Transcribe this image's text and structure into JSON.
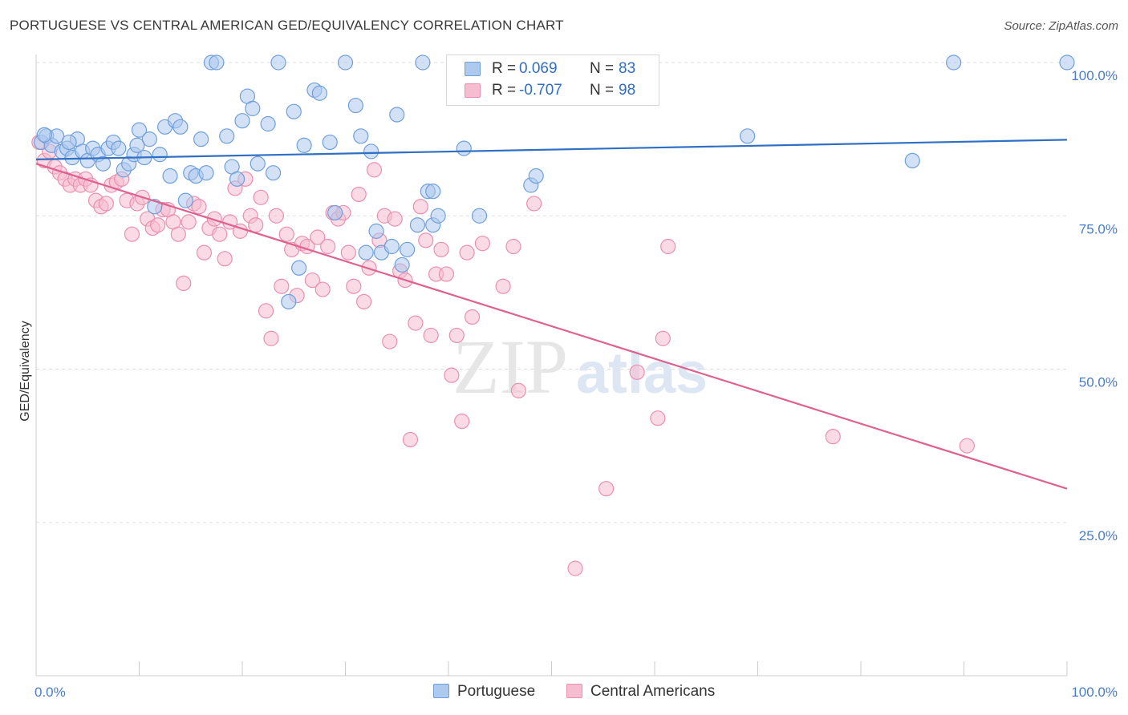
{
  "title": "PORTUGUESE VS CENTRAL AMERICAN GED/EQUIVALENCY CORRELATION CHART",
  "source": "Source: ZipAtlas.com",
  "watermark": {
    "zip": "ZIP",
    "atlas": "atlas"
  },
  "legend": {
    "series1": {
      "r_label": "R =",
      "r_value": "0.069",
      "n_label": "N =",
      "n_value": "83"
    },
    "series2": {
      "r_label": "R =",
      "r_value": "-0.707",
      "n_label": "N =",
      "n_value": "98"
    }
  },
  "bottom_legend": {
    "series1": "Portuguese",
    "series2": "Central Americans"
  },
  "colors": {
    "blue_fill": "#adc9ee",
    "blue_stroke": "#6f9fdc",
    "blue_line": "#2f6fc4",
    "pink_fill": "#f6bcd0",
    "pink_stroke": "#eb8fb0",
    "pink_line": "#e0608e",
    "grid": "#dddddd",
    "tick_label": "#4a7cc9"
  },
  "chart_data": {
    "type": "scatter",
    "title": "PORTUGUESE VS CENTRAL AMERICAN GED/EQUIVALENCY CORRELATION CHART",
    "xlabel": "",
    "ylabel": "GED/Equivalency",
    "xlim": [
      0,
      100
    ],
    "ylim": [
      0,
      100
    ],
    "x_tick_labels": [
      "0.0%",
      "100.0%"
    ],
    "y_ticks": [
      25,
      50,
      75,
      100
    ],
    "y_tick_labels": [
      "25.0%",
      "50.0%",
      "75.0%",
      "100.0%"
    ],
    "grid": true,
    "series": [
      {
        "name": "Portuguese",
        "trend": {
          "x": [
            0,
            100
          ],
          "y": [
            84.2,
            87.4
          ]
        },
        "points": [
          [
            0.5,
            87
          ],
          [
            1,
            88
          ],
          [
            1.5,
            86.5
          ],
          [
            2,
            88
          ],
          [
            2.5,
            85.5
          ],
          [
            3,
            86
          ],
          [
            3.5,
            84.5
          ],
          [
            4,
            87.5
          ],
          [
            4.5,
            85.5
          ],
          [
            5,
            84
          ],
          [
            5.5,
            86
          ],
          [
            6,
            85
          ],
          [
            6.5,
            83.5
          ],
          [
            7,
            86
          ],
          [
            7.5,
            87
          ],
          [
            8,
            86
          ],
          [
            8.5,
            82.5
          ],
          [
            9,
            83.5
          ],
          [
            9.5,
            85
          ],
          [
            10,
            89
          ],
          [
            10.5,
            84.5
          ],
          [
            11,
            87.5
          ],
          [
            11.5,
            76.5
          ],
          [
            12,
            85
          ],
          [
            12.5,
            89.5
          ],
          [
            13,
            81.5
          ],
          [
            13.5,
            90.5
          ],
          [
            14,
            89.5
          ],
          [
            14.5,
            77.5
          ],
          [
            15,
            82
          ],
          [
            15.5,
            81.5
          ],
          [
            16,
            87.5
          ],
          [
            16.5,
            82
          ],
          [
            17,
            100
          ],
          [
            17.5,
            100
          ],
          [
            18.5,
            88
          ],
          [
            19,
            83
          ],
          [
            19.5,
            81
          ],
          [
            20,
            90.5
          ],
          [
            20.5,
            94.5
          ],
          [
            21,
            92.5
          ],
          [
            21.5,
            83.5
          ],
          [
            22.5,
            90
          ],
          [
            23,
            82
          ],
          [
            23.5,
            100
          ],
          [
            24.5,
            61
          ],
          [
            25,
            92
          ],
          [
            25.5,
            66.5
          ],
          [
            26,
            86.5
          ],
          [
            27,
            95.5
          ],
          [
            27.5,
            95
          ],
          [
            28.5,
            87
          ],
          [
            29,
            75.5
          ],
          [
            30,
            100
          ],
          [
            31,
            93
          ],
          [
            31.5,
            88
          ],
          [
            32,
            69
          ],
          [
            32.5,
            85.5
          ],
          [
            33,
            72.5
          ],
          [
            33.5,
            69
          ],
          [
            34.5,
            70
          ],
          [
            35,
            91.5
          ],
          [
            35.5,
            67
          ],
          [
            36,
            69.5
          ],
          [
            37,
            73.5
          ],
          [
            37.5,
            100
          ],
          [
            38,
            79
          ],
          [
            38.5,
            73.5
          ],
          [
            38.5,
            79
          ],
          [
            39,
            75
          ],
          [
            41.5,
            86
          ],
          [
            43,
            75
          ],
          [
            45.5,
            100
          ],
          [
            48,
            80
          ],
          [
            48.5,
            81.5
          ],
          [
            48.5,
            100
          ],
          [
            69,
            88
          ],
          [
            85,
            84
          ],
          [
            89,
            100
          ],
          [
            100,
            100
          ],
          [
            0.8,
            88.2
          ],
          [
            3.2,
            87
          ],
          [
            9.8,
            86.5
          ]
        ]
      },
      {
        "name": "Central Americans",
        "trend": {
          "x": [
            0,
            100
          ],
          "y": [
            83.5,
            30.5
          ]
        },
        "points": [
          [
            0.3,
            87
          ],
          [
            0.8,
            84
          ],
          [
            1.3,
            85.5
          ],
          [
            1.8,
            83
          ],
          [
            2.3,
            82
          ],
          [
            2.8,
            81
          ],
          [
            3.3,
            80
          ],
          [
            3.8,
            81
          ],
          [
            4.3,
            80
          ],
          [
            4.8,
            81
          ],
          [
            5.3,
            80
          ],
          [
            5.8,
            77.5
          ],
          [
            6.3,
            76.5
          ],
          [
            6.8,
            77
          ],
          [
            7.3,
            80
          ],
          [
            7.8,
            80.5
          ],
          [
            8.3,
            81
          ],
          [
            8.8,
            77.5
          ],
          [
            9.3,
            72
          ],
          [
            9.8,
            77
          ],
          [
            10.3,
            78
          ],
          [
            10.8,
            74.5
          ],
          [
            11.3,
            73
          ],
          [
            11.8,
            73.5
          ],
          [
            12.3,
            76
          ],
          [
            12.8,
            76
          ],
          [
            13.3,
            74
          ],
          [
            13.8,
            72
          ],
          [
            14.3,
            64
          ],
          [
            14.8,
            74
          ],
          [
            15.3,
            77
          ],
          [
            15.8,
            76.5
          ],
          [
            16.3,
            69
          ],
          [
            16.8,
            73
          ],
          [
            17.3,
            74.5
          ],
          [
            17.8,
            72
          ],
          [
            18.3,
            68
          ],
          [
            18.8,
            74
          ],
          [
            19.3,
            79.5
          ],
          [
            19.8,
            72.5
          ],
          [
            20.3,
            81
          ],
          [
            20.8,
            75
          ],
          [
            21.3,
            73.5
          ],
          [
            21.8,
            78
          ],
          [
            22.3,
            59.5
          ],
          [
            22.8,
            55
          ],
          [
            23.3,
            75
          ],
          [
            23.8,
            63.5
          ],
          [
            24.3,
            72
          ],
          [
            24.8,
            69.5
          ],
          [
            25.3,
            62
          ],
          [
            25.8,
            70.5
          ],
          [
            26.3,
            70
          ],
          [
            26.8,
            64.5
          ],
          [
            27.3,
            71.5
          ],
          [
            27.8,
            63
          ],
          [
            28.3,
            70
          ],
          [
            28.8,
            75.5
          ],
          [
            29.3,
            74.5
          ],
          [
            29.8,
            75.5
          ],
          [
            30.3,
            69
          ],
          [
            30.8,
            63.5
          ],
          [
            31.3,
            78.5
          ],
          [
            31.8,
            61
          ],
          [
            32.3,
            66.5
          ],
          [
            32.8,
            82.5
          ],
          [
            33.3,
            71
          ],
          [
            33.8,
            75
          ],
          [
            34.3,
            54.5
          ],
          [
            34.8,
            74.5
          ],
          [
            35.3,
            66
          ],
          [
            35.8,
            64.5
          ],
          [
            36.3,
            38.5
          ],
          [
            36.8,
            57.5
          ],
          [
            37.3,
            76.5
          ],
          [
            37.8,
            71
          ],
          [
            38.3,
            55.5
          ],
          [
            38.8,
            65.5
          ],
          [
            39.3,
            69.5
          ],
          [
            39.8,
            65.5
          ],
          [
            40.3,
            49
          ],
          [
            40.8,
            55.5
          ],
          [
            41.3,
            41.5
          ],
          [
            41.8,
            69
          ],
          [
            42.3,
            58.5
          ],
          [
            43.3,
            70.5
          ],
          [
            45.3,
            63.5
          ],
          [
            46.3,
            70
          ],
          [
            46.8,
            46.5
          ],
          [
            48.3,
            77
          ],
          [
            52.3,
            17.5
          ],
          [
            55.3,
            30.5
          ],
          [
            58.3,
            49.5
          ],
          [
            60.3,
            42
          ],
          [
            60.8,
            55
          ],
          [
            61.3,
            70
          ],
          [
            77.3,
            39
          ],
          [
            90.3,
            37.5
          ]
        ]
      }
    ]
  }
}
